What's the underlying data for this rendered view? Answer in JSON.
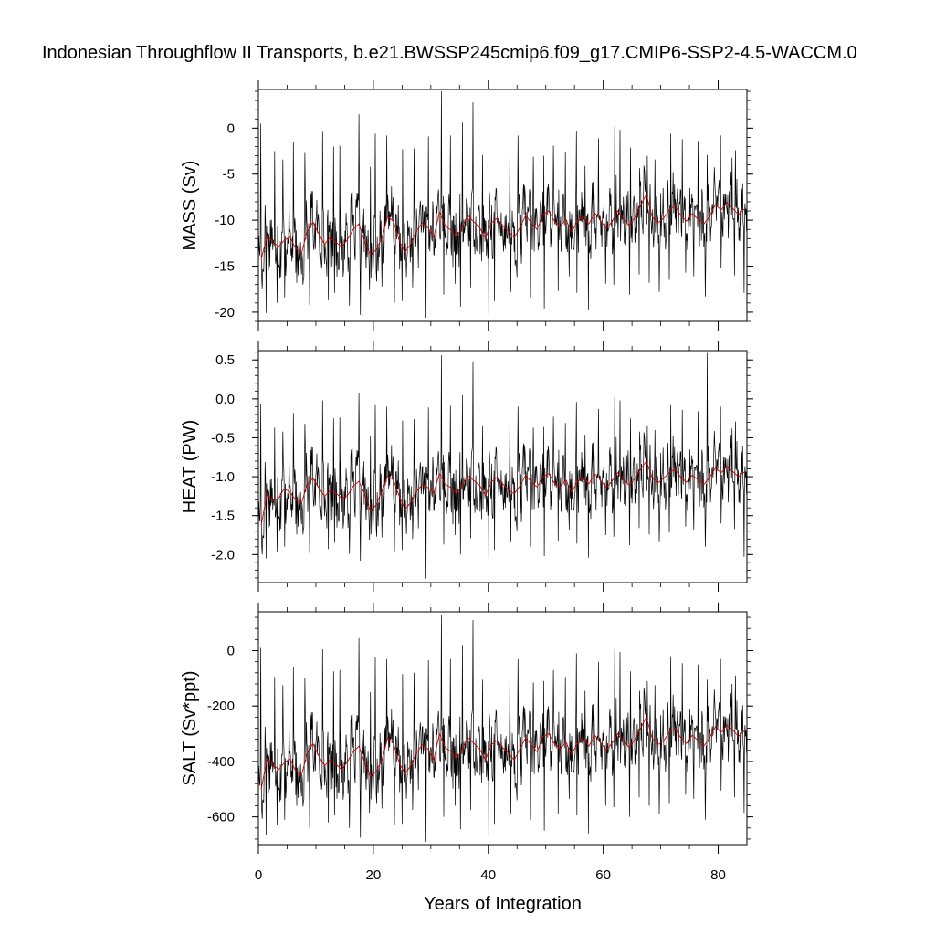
{
  "chart_data": {
    "title": "Indonesian Throughflow II Transports, b.e21.BWSSP245cmip6.f09_g17.CMIP6-SSP2-4.5-WACCM.0",
    "type": "line",
    "xlabel": "Years of Integration",
    "xlim": [
      0,
      85
    ],
    "xticks": [
      0,
      20,
      40,
      60,
      80
    ],
    "xtick_labels": [
      "0",
      "20",
      "40",
      "60",
      "80"
    ],
    "colors": {
      "monthly": "#000000",
      "annual": "#cc0000"
    },
    "panels": [
      {
        "name": "mass",
        "ylabel": "MASS (Sv)",
        "ylim": [
          -21,
          4.2
        ],
        "yticks": [
          0,
          -5,
          -10,
          -15,
          -20
        ],
        "ytick_labels": [
          "0",
          "-5",
          "-10",
          "-15",
          "-20"
        ],
        "annual": [
          -14.2,
          -11.8,
          -12.3,
          -12.9,
          -12.2,
          -11.8,
          -13.1,
          -13.6,
          -11.2,
          -10.2,
          -11.5,
          -12.6,
          -11.9,
          -12.4,
          -12.9,
          -12.1,
          -11.0,
          -10.4,
          -12.3,
          -13.8,
          -13.2,
          -11.9,
          -9.6,
          -10.1,
          -12.2,
          -13.5,
          -12.6,
          -11.2,
          -10.3,
          -10.8,
          -11.9,
          -9.1,
          -10.6,
          -11.1,
          -11.8,
          -10.7,
          -9.5,
          -10.2,
          -10.8,
          -12.0,
          -10.3,
          -9.8,
          -10.6,
          -11.2,
          -11.9,
          -10.8,
          -9.5,
          -10.3,
          -11.0,
          -9.4,
          -9.0,
          -10.1,
          -10.7,
          -9.9,
          -11.3,
          -10.1,
          -9.6,
          -10.4,
          -9.2,
          -10.0,
          -10.9,
          -10.2,
          -9.0,
          -9.8,
          -10.6,
          -9.7,
          -8.4,
          -7.2,
          -9.6,
          -10.3,
          -9.8,
          -8.9,
          -8.4,
          -9.5,
          -10.1,
          -9.3,
          -9.9,
          -10.4,
          -9.6,
          -8.3,
          -8.9,
          -8.1,
          -8.7,
          -9.4,
          -8.8
        ],
        "peaks": [
          0.5,
          -2.5,
          -3.4,
          -1.5,
          -2.7,
          -0.4,
          -2.0,
          -1.9,
          1.5,
          -4.2,
          -0.6,
          -0.8,
          -2.3,
          -2.2,
          -0.9,
          4.0,
          -0.8,
          0.6,
          2.8,
          -2.9,
          1.8,
          -2.1,
          -0.8,
          -3.1,
          -3.0,
          -1.9,
          -2.6,
          -0.3,
          -4.1,
          -1.1,
          0.2,
          -0.2,
          -2.1,
          -3.0,
          -3.4,
          -0.6,
          -1.2,
          -1.4,
          -2.9,
          -0.8,
          -3.2,
          -2.4
        ],
        "troughs": [
          -20.1,
          -19.0,
          -18.4,
          -16.8,
          -19.2,
          -18.7,
          -17.9,
          -19.3,
          -20.3,
          -17.6,
          -17.2,
          -19.0,
          -18.8,
          -17.3,
          -20.6,
          -18.1,
          -16.9,
          -19.4,
          -17.3,
          -20.2,
          -18.8,
          -17.8,
          -16.2,
          -18.4,
          -19.6,
          -17.7,
          -16.1,
          -17.9,
          -19.8,
          -16.9,
          -17.0,
          -18.1,
          -15.9,
          -16.8,
          -17.8,
          -16.5,
          -15.7,
          -16.1,
          -18.3,
          -15.2,
          -16.0,
          -17.9
        ]
      },
      {
        "name": "heat",
        "ylabel": "HEAT (PW)",
        "ylim": [
          -2.36,
          0.62
        ],
        "yticks": [
          0.5,
          0.0,
          -0.5,
          -1.0,
          -1.5,
          -2.0
        ],
        "ytick_labels": [
          "0.5",
          "0.0",
          "-0.5",
          "-1.0",
          "-1.5",
          "-2.0"
        ],
        "annual": [
          -1.62,
          -1.22,
          -1.31,
          -1.28,
          -1.15,
          -1.2,
          -1.3,
          -1.34,
          -1.09,
          -1.02,
          -1.14,
          -1.25,
          -1.18,
          -1.21,
          -1.28,
          -1.24,
          -1.12,
          -1.06,
          -1.22,
          -1.45,
          -1.36,
          -1.18,
          -0.99,
          -1.04,
          -1.25,
          -1.42,
          -1.33,
          -1.19,
          -1.1,
          -1.14,
          -1.21,
          -0.96,
          -1.1,
          -1.14,
          -1.22,
          -1.1,
          -0.99,
          -1.05,
          -1.11,
          -1.24,
          -1.07,
          -1.01,
          -1.09,
          -1.17,
          -1.22,
          -1.12,
          -0.98,
          -1.07,
          -1.13,
          -1.0,
          -0.96,
          -1.08,
          -1.13,
          -1.04,
          -1.2,
          -1.06,
          -1.0,
          -1.09,
          -0.96,
          -1.04,
          -1.14,
          -1.06,
          -0.95,
          -1.03,
          -1.11,
          -1.02,
          -0.9,
          -0.8,
          -1.01,
          -1.08,
          -1.02,
          -0.95,
          -0.9,
          -1.01,
          -1.07,
          -0.98,
          -1.04,
          -1.1,
          -1.01,
          -0.89,
          -0.95,
          -0.87,
          -0.93,
          -1.0,
          -0.94
        ],
        "peaks": [
          -0.06,
          -0.37,
          -0.42,
          -0.18,
          -0.32,
          -0.02,
          -0.25,
          -0.24,
          0.08,
          -0.48,
          -0.08,
          -0.1,
          -0.28,
          -0.26,
          -0.11,
          0.56,
          -0.09,
          0.05,
          0.48,
          -0.35,
          0.22,
          -0.25,
          -0.1,
          -0.37,
          -0.36,
          -0.23,
          -0.31,
          -0.04,
          -0.46,
          -0.13,
          0.02,
          -0.02,
          -0.25,
          -0.35,
          -0.4,
          -0.08,
          -0.14,
          -0.16,
          0.59,
          -0.1,
          -0.38,
          -0.29
        ],
        "troughs": [
          -2.05,
          -1.96,
          -1.9,
          -1.74,
          -1.98,
          -1.93,
          -1.85,
          -1.99,
          -2.08,
          -1.81,
          -1.78,
          -1.96,
          -1.94,
          -1.8,
          -2.31,
          -1.87,
          -1.75,
          -2.0,
          -1.79,
          -2.06,
          -1.94,
          -1.84,
          -1.69,
          -1.9,
          -2.02,
          -1.83,
          -1.68,
          -1.86,
          -2.04,
          -1.75,
          -1.77,
          -1.88,
          -1.66,
          -1.74,
          -1.84,
          -1.72,
          -1.64,
          -1.68,
          -1.9,
          -1.6,
          -1.67,
          -2.03
        ]
      },
      {
        "name": "salt",
        "ylabel": "SALT (Sv*ppt)",
        "ylim": [
          -700,
          140
        ],
        "yticks": [
          0,
          -200,
          -400,
          -600
        ],
        "ytick_labels": [
          "0",
          "-200",
          "-400",
          "-600"
        ],
        "annual": [
          -500,
          -390,
          -410,
          -430,
          -405,
          -390,
          -435,
          -450,
          -370,
          -335,
          -380,
          -415,
          -395,
          -410,
          -430,
          -400,
          -365,
          -345,
          -405,
          -455,
          -435,
          -395,
          -315,
          -335,
          -405,
          -445,
          -415,
          -370,
          -340,
          -355,
          -395,
          -300,
          -350,
          -365,
          -390,
          -355,
          -315,
          -335,
          -355,
          -395,
          -340,
          -325,
          -350,
          -370,
          -395,
          -355,
          -315,
          -340,
          -365,
          -310,
          -300,
          -335,
          -355,
          -330,
          -375,
          -335,
          -315,
          -345,
          -305,
          -330,
          -360,
          -335,
          -300,
          -325,
          -350,
          -320,
          -280,
          -240,
          -315,
          -340,
          -325,
          -295,
          -280,
          -315,
          -335,
          -305,
          -325,
          -345,
          -315,
          -275,
          -295,
          -270,
          -285,
          -310,
          -290
        ],
        "peaks": [
          10,
          -95,
          -125,
          -60,
          -100,
          5,
          -75,
          -70,
          45,
          -150,
          -25,
          -30,
          -85,
          -80,
          -35,
          130,
          -30,
          20,
          110,
          -105,
          65,
          -80,
          -30,
          -115,
          -110,
          -70,
          -95,
          -10,
          -145,
          -40,
          5,
          -5,
          -75,
          -110,
          -125,
          -20,
          -45,
          -50,
          -105,
          -30,
          -120,
          -90
        ],
        "troughs": [
          -665,
          -630,
          -610,
          -560,
          -640,
          -620,
          -595,
          -640,
          -675,
          -585,
          -570,
          -630,
          -625,
          -575,
          -690,
          -600,
          -560,
          -645,
          -575,
          -670,
          -625,
          -590,
          -540,
          -610,
          -650,
          -590,
          -535,
          -595,
          -660,
          -560,
          -565,
          -600,
          -530,
          -560,
          -590,
          -550,
          -520,
          -535,
          -610,
          -505,
          -530,
          -585
        ]
      }
    ]
  }
}
